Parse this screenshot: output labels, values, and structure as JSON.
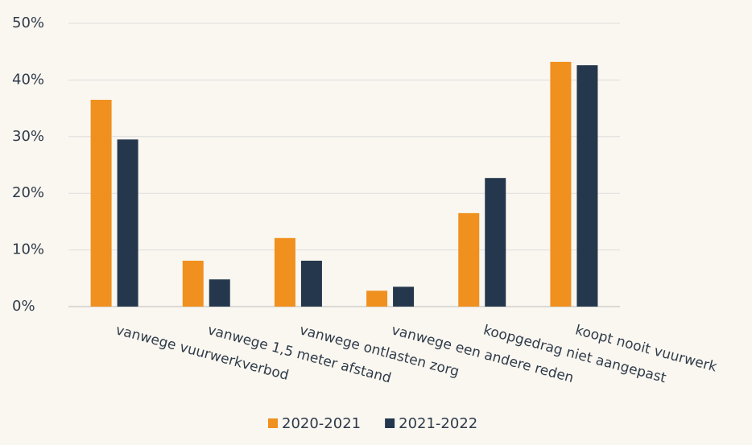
{
  "chart_data": {
    "type": "bar",
    "categories": [
      "vanwege vuurwerkverbod",
      "vanwege 1,5 meter afstand",
      "vanwege ontlasten zorg",
      "vanwege een andere reden",
      "koopgedrag niet aangepast",
      "koopt nooit vuurwerk"
    ],
    "series": [
      {
        "name": "2020-2021",
        "color": "#f0901e",
        "values": [
          36.5,
          8.1,
          12.1,
          2.8,
          16.5,
          43.2
        ]
      },
      {
        "name": "2021-2022",
        "color": "#25374d",
        "values": [
          29.5,
          4.8,
          8.1,
          3.5,
          22.7,
          42.6
        ]
      }
    ],
    "ylim": [
      0,
      50
    ],
    "yticks": [
      {
        "value": 0,
        "label": "0%"
      },
      {
        "value": 10,
        "label": "10%"
      },
      {
        "value": 20,
        "label": "20%"
      },
      {
        "value": 30,
        "label": "30%"
      },
      {
        "value": 40,
        "label": "40%"
      },
      {
        "value": 50,
        "label": "50%"
      }
    ],
    "grid": true,
    "legend": "bottom"
  }
}
